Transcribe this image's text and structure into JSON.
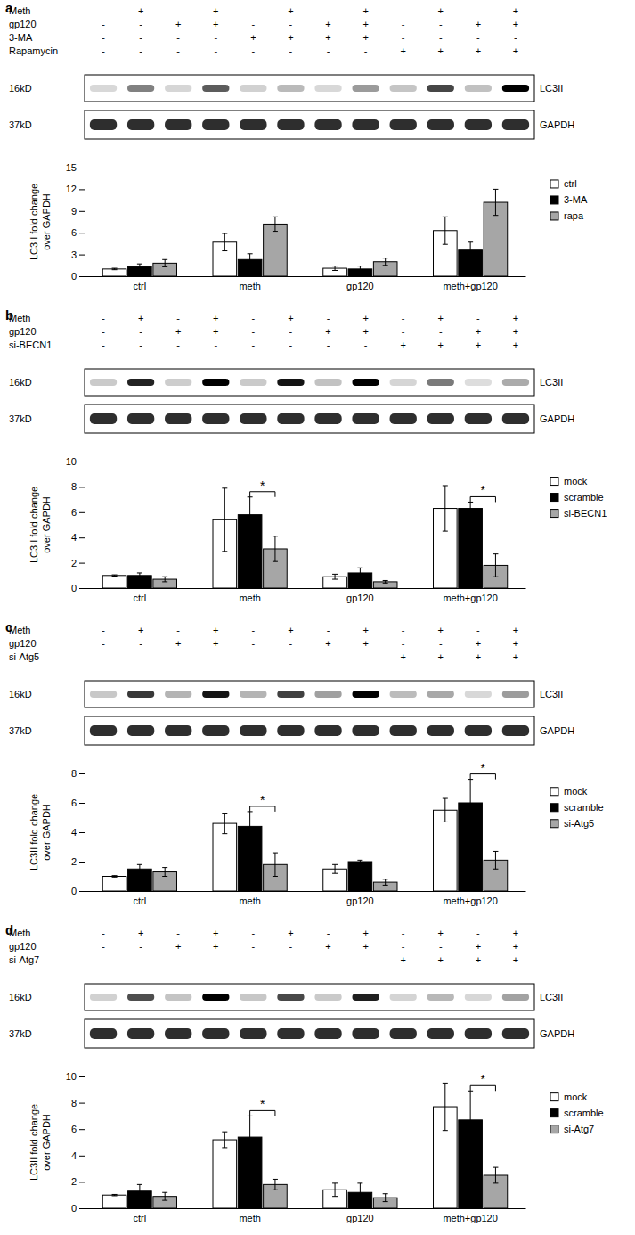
{
  "chart_data": [
    {
      "type": "bar",
      "panel_label": "a",
      "conditions": [
        {
          "label": "Meth",
          "marks": [
            "-",
            "+",
            "-",
            "+",
            "-",
            "+",
            "-",
            "+",
            "-",
            "+",
            "-",
            "+"
          ]
        },
        {
          "label": "gp120",
          "marks": [
            "-",
            "-",
            "+",
            "+",
            "-",
            "-",
            "+",
            "+",
            "-",
            "-",
            "+",
            "+"
          ]
        },
        {
          "label": "3-MA",
          "marks": [
            "-",
            "-",
            "-",
            "-",
            "+",
            "+",
            "+",
            "+",
            "-",
            "-",
            "-",
            "-"
          ]
        },
        {
          "label": "Rapamycin",
          "marks": [
            "-",
            "-",
            "-",
            "-",
            "-",
            "-",
            "-",
            "-",
            "+",
            "+",
            "+",
            "+"
          ]
        }
      ],
      "blots": [
        {
          "size": "16kD",
          "protein": "LC3II"
        },
        {
          "size": "37kD",
          "protein": "GAPDH"
        }
      ],
      "y_label": "LC3II fold change\nover GAPDH",
      "categories": [
        "ctrl",
        "meth",
        "gp120",
        "meth+gp120"
      ],
      "series": [
        {
          "name": "ctrl",
          "color": "#ffffff",
          "values": [
            1.0,
            4.7,
            1.1,
            6.3
          ],
          "errors": [
            0.1,
            1.2,
            0.3,
            1.9
          ]
        },
        {
          "name": "3-MA",
          "color": "#000000",
          "values": [
            1.3,
            2.3,
            1.0,
            3.6
          ],
          "errors": [
            0.4,
            0.8,
            0.4,
            1.1
          ]
        },
        {
          "name": "rapa",
          "color": "#a6a6a6",
          "values": [
            1.8,
            7.2,
            2.0,
            10.2
          ],
          "errors": [
            0.5,
            1.0,
            0.5,
            1.8
          ]
        }
      ],
      "ylim": [
        0,
        15
      ],
      "yticks": [
        0,
        3,
        6,
        9,
        12,
        15
      ],
      "legend": "right",
      "annotations": []
    },
    {
      "type": "bar",
      "panel_label": "b",
      "conditions": [
        {
          "label": "Meth",
          "marks": [
            "-",
            "+",
            "-",
            "+",
            "-",
            "+",
            "-",
            "+",
            "-",
            "+",
            "-",
            "+"
          ]
        },
        {
          "label": "gp120",
          "marks": [
            "-",
            "-",
            "+",
            "+",
            "-",
            "-",
            "+",
            "+",
            "-",
            "-",
            "+",
            "+"
          ]
        },
        {
          "label": "si-BECN1",
          "marks": [
            "-",
            "-",
            "-",
            "-",
            "-",
            "-",
            "-",
            "-",
            "+",
            "+",
            "+",
            "+"
          ]
        }
      ],
      "blots": [
        {
          "size": "16kD",
          "protein": "LC3II"
        },
        {
          "size": "37kD",
          "protein": "GAPDH"
        }
      ],
      "y_label": "LC3II fold change\nover GAPDH",
      "categories": [
        "ctrl",
        "meth",
        "gp120",
        "meth+gp120"
      ],
      "series": [
        {
          "name": "mock",
          "color": "#ffffff",
          "values": [
            1.0,
            5.4,
            0.9,
            6.3
          ],
          "errors": [
            0.05,
            2.5,
            0.2,
            1.8
          ]
        },
        {
          "name": "scramble",
          "color": "#000000",
          "values": [
            1.0,
            5.8,
            1.2,
            6.3
          ],
          "errors": [
            0.2,
            1.4,
            0.4,
            0.5
          ]
        },
        {
          "name": "si-BECN1",
          "color": "#a6a6a6",
          "values": [
            0.7,
            3.1,
            0.5,
            1.8
          ],
          "errors": [
            0.2,
            1.0,
            0.1,
            0.9
          ]
        }
      ],
      "ylim": [
        0,
        10
      ],
      "yticks": [
        0,
        2,
        4,
        6,
        8,
        10
      ],
      "legend": "right",
      "annotations": [
        {
          "text": "*",
          "category": "meth",
          "between": [
            "scramble",
            "si-BECN1"
          ]
        },
        {
          "text": "*",
          "category": "meth+gp120",
          "between": [
            "scramble",
            "si-BECN1"
          ]
        }
      ]
    },
    {
      "type": "bar",
      "panel_label": "c",
      "conditions": [
        {
          "label": "Meth",
          "marks": [
            "-",
            "+",
            "-",
            "+",
            "-",
            "+",
            "-",
            "+",
            "-",
            "+",
            "-",
            "+"
          ]
        },
        {
          "label": "gp120",
          "marks": [
            "-",
            "-",
            "+",
            "+",
            "-",
            "-",
            "+",
            "+",
            "-",
            "-",
            "+",
            "+"
          ]
        },
        {
          "label": "si-Atg5",
          "marks": [
            "-",
            "-",
            "-",
            "-",
            "-",
            "-",
            "-",
            "-",
            "+",
            "+",
            "+",
            "+"
          ]
        }
      ],
      "blots": [
        {
          "size": "16kD",
          "protein": "LC3II"
        },
        {
          "size": "37kD",
          "protein": "GAPDH"
        }
      ],
      "y_label": "LC3II fold change\nover GAPDH",
      "categories": [
        "ctrl",
        "meth",
        "gp120",
        "meth+gp120"
      ],
      "series": [
        {
          "name": "mock",
          "color": "#ffffff",
          "values": [
            1.0,
            4.6,
            1.5,
            5.5
          ],
          "errors": [
            0.05,
            0.7,
            0.3,
            0.8
          ]
        },
        {
          "name": "scramble",
          "color": "#000000",
          "values": [
            1.5,
            4.4,
            2.0,
            6.0
          ],
          "errors": [
            0.3,
            1.0,
            0.1,
            1.6
          ]
        },
        {
          "name": "si-Atg5",
          "color": "#a6a6a6",
          "values": [
            1.3,
            1.8,
            0.6,
            2.1
          ],
          "errors": [
            0.3,
            0.8,
            0.2,
            0.6
          ]
        }
      ],
      "ylim": [
        0,
        8
      ],
      "yticks": [
        0,
        2,
        4,
        6,
        8
      ],
      "legend": "right",
      "annotations": [
        {
          "text": "*",
          "category": "meth",
          "between": [
            "scramble",
            "si-Atg5"
          ]
        },
        {
          "text": "*",
          "category": "meth+gp120",
          "between": [
            "scramble",
            "si-Atg5"
          ]
        }
      ]
    },
    {
      "type": "bar",
      "panel_label": "d",
      "conditions": [
        {
          "label": "Meth",
          "marks": [
            "-",
            "+",
            "-",
            "+",
            "-",
            "+",
            "-",
            "+",
            "-",
            "+",
            "-",
            "+"
          ]
        },
        {
          "label": "gp120",
          "marks": [
            "-",
            "-",
            "+",
            "+",
            "-",
            "-",
            "+",
            "+",
            "-",
            "-",
            "+",
            "+"
          ]
        },
        {
          "label": "si-Atg7",
          "marks": [
            "-",
            "-",
            "-",
            "-",
            "-",
            "-",
            "-",
            "-",
            "+",
            "+",
            "+",
            "+"
          ]
        }
      ],
      "blots": [
        {
          "size": "16kD",
          "protein": "LC3II"
        },
        {
          "size": "37kD",
          "protein": "GAPDH"
        }
      ],
      "y_label": "LC3II fold change\nover GAPDH",
      "categories": [
        "ctrl",
        "meth",
        "gp120",
        "meth+gp120"
      ],
      "series": [
        {
          "name": "mock",
          "color": "#ffffff",
          "values": [
            1.0,
            5.2,
            1.4,
            7.7
          ],
          "errors": [
            0.05,
            0.6,
            0.5,
            1.8
          ]
        },
        {
          "name": "scramble",
          "color": "#000000",
          "values": [
            1.3,
            5.4,
            1.2,
            6.7
          ],
          "errors": [
            0.5,
            1.6,
            0.7,
            2.2
          ]
        },
        {
          "name": "si-Atg7",
          "color": "#a6a6a6",
          "values": [
            0.9,
            1.8,
            0.8,
            2.5
          ],
          "errors": [
            0.3,
            0.4,
            0.3,
            0.6
          ]
        }
      ],
      "ylim": [
        0,
        10
      ],
      "yticks": [
        0,
        2,
        4,
        6,
        8,
        10
      ],
      "legend": "right",
      "annotations": [
        {
          "text": "*",
          "category": "meth",
          "between": [
            "scramble",
            "si-Atg7"
          ]
        },
        {
          "text": "*",
          "category": "meth+gp120",
          "between": [
            "scramble",
            "si-Atg7"
          ]
        }
      ]
    }
  ]
}
